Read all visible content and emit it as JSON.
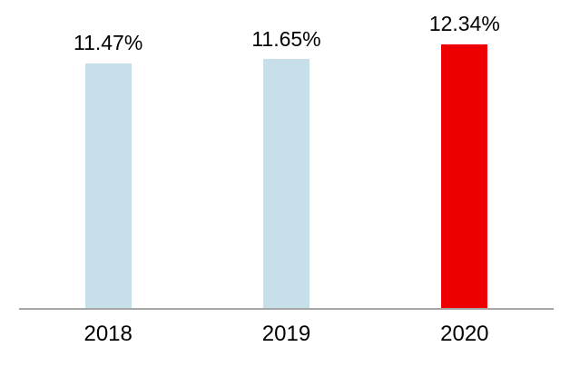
{
  "chart_data": {
    "type": "bar",
    "title": "",
    "xlabel": "",
    "ylabel": "",
    "categories": [
      "2018",
      "2019",
      "2020"
    ],
    "values": [
      11.47,
      11.65,
      12.34
    ],
    "data_labels": [
      "11.47%",
      "11.65%",
      "12.34%"
    ],
    "ylim": [
      0,
      12.34
    ],
    "grid": false,
    "legend": false,
    "bar_colors": [
      "#c6dfe9",
      "#c6dfe9",
      "#ee0000"
    ],
    "text_color": "#000000",
    "axis_line_color": "#a6a6a6"
  }
}
